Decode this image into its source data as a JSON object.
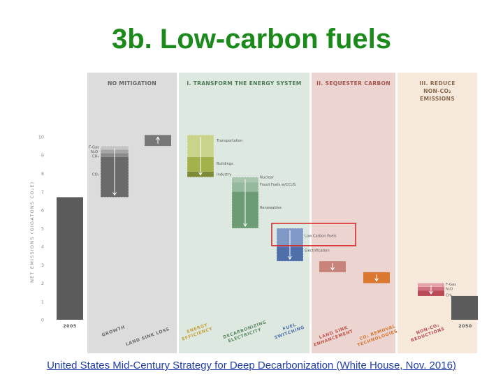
{
  "slide": {
    "title": "3b. Low-carbon fuels",
    "caption": "United States Mid-Century Strategy for Deep Decarbonization (White House, Nov. 2016)"
  },
  "chart_data": {
    "type": "bar",
    "subtype": "waterfall",
    "ylabel": "NET EMISSIONS (GIGATONS CO₂E)",
    "ylim": [
      0,
      10
    ],
    "yticks": [
      0,
      1,
      2,
      3,
      4,
      5,
      6,
      7,
      8,
      9,
      10
    ],
    "grid": false,
    "panels": [
      {
        "label": "NO MITIGATION",
        "color": "#dcdcdc"
      },
      {
        "label": "I. TRANSFORM THE ENERGY SYSTEM",
        "color": "#dde9e0"
      },
      {
        "label": "II. SEQUESTER CARBON",
        "color": "#ecd4d1"
      },
      {
        "label": "III. REDUCE NON-CO₂ EMISSIONS",
        "color": "#f6e9dc"
      }
    ],
    "x_labels": [
      "2005",
      "GROWTH",
      "LAND SINK LOSS",
      "ENERGY EFFICIENCY",
      "DECARBONIZING ELECTRICITY",
      "FUEL SWITCHING",
      "LAND SINK ENHANCEMENT",
      "CO₂ REMOVAL TECHNOLOGIES",
      "NON-CO₂ REDUCTIONS",
      "2050"
    ],
    "bars": [
      {
        "label": "2005",
        "bottom": 0,
        "top": 6.7,
        "color": "#5b5b5b"
      },
      {
        "label": "GROWTH",
        "bottom": 6.7,
        "top": 9.5,
        "color": "#6a6a6a",
        "segments": [
          {
            "name": "CO₂",
            "bottom": 6.7,
            "top": 8.9,
            "color": "#6a6a6a"
          },
          {
            "name": "CH₄",
            "bottom": 8.9,
            "top": 9.1,
            "color": "#8a8a8a"
          },
          {
            "name": "N₂O",
            "bottom": 9.1,
            "top": 9.3,
            "color": "#a6a6a6"
          },
          {
            "name": "F-Gas",
            "bottom": 9.3,
            "top": 9.5,
            "color": "#c4c4c4"
          }
        ]
      },
      {
        "label": "LAND SINK LOSS",
        "bottom": 9.5,
        "top": 10.1,
        "color": "#777777"
      },
      {
        "label": "ENERGY EFFICIENCY",
        "bottom": 7.8,
        "top": 10.1,
        "color": "#b8c56b",
        "segments": [
          {
            "name": "Industry",
            "bottom": 7.8,
            "top": 8.1,
            "color": "#7f8a36"
          },
          {
            "name": "Buildings",
            "bottom": 8.1,
            "top": 8.9,
            "color": "#a5b24c"
          },
          {
            "name": "Transportation",
            "bottom": 8.9,
            "top": 10.1,
            "color": "#c9d48a"
          }
        ]
      },
      {
        "label": "DECARBONIZING ELECTRICITY",
        "bottom": 5.0,
        "top": 7.8,
        "color": "#6d9b76",
        "segments": [
          {
            "name": "Renewables",
            "bottom": 5.0,
            "top": 7.0,
            "color": "#6d9b76"
          },
          {
            "name": "Fossil Fuels w/CCUS",
            "bottom": 7.0,
            "top": 7.5,
            "color": "#95b99c"
          },
          {
            "name": "Nuclear",
            "bottom": 7.5,
            "top": 7.8,
            "color": "#a9c5ae"
          }
        ]
      },
      {
        "label": "FUEL SWITCHING",
        "bottom": 3.2,
        "top": 5.0,
        "color": "#4f6fa8",
        "segments": [
          {
            "name": "Electrification",
            "bottom": 3.2,
            "top": 4.0,
            "color": "#4f6fa8"
          },
          {
            "name": "Low Carbon Fuels",
            "bottom": 4.0,
            "top": 5.0,
            "color": "#7f98c6"
          }
        ]
      },
      {
        "label": "LAND SINK ENHANCEMENT",
        "bottom": 2.6,
        "top": 3.2,
        "color": "#c8837b"
      },
      {
        "label": "CO₂ REMOVAL TECHNOLOGIES",
        "bottom": 2.0,
        "top": 2.6,
        "color": "#d9782e"
      },
      {
        "label": "NON-CO₂ REDUCTIONS",
        "bottom": 1.3,
        "top": 2.0,
        "color": "#b94a57",
        "segments": [
          {
            "name": "CH₄",
            "bottom": 1.3,
            "top": 1.6,
            "color": "#b94a57"
          },
          {
            "name": "N₂O",
            "bottom": 1.6,
            "top": 1.8,
            "color": "#d07380"
          },
          {
            "name": "F-Gas",
            "bottom": 1.8,
            "top": 2.0,
            "color": "#e3a3ab"
          }
        ]
      },
      {
        "label": "2050",
        "bottom": 0,
        "top": 1.3,
        "color": "#5b5b5b"
      }
    ],
    "highlight": {
      "label": "Low Carbon Fuels",
      "color": "#d42020"
    }
  }
}
